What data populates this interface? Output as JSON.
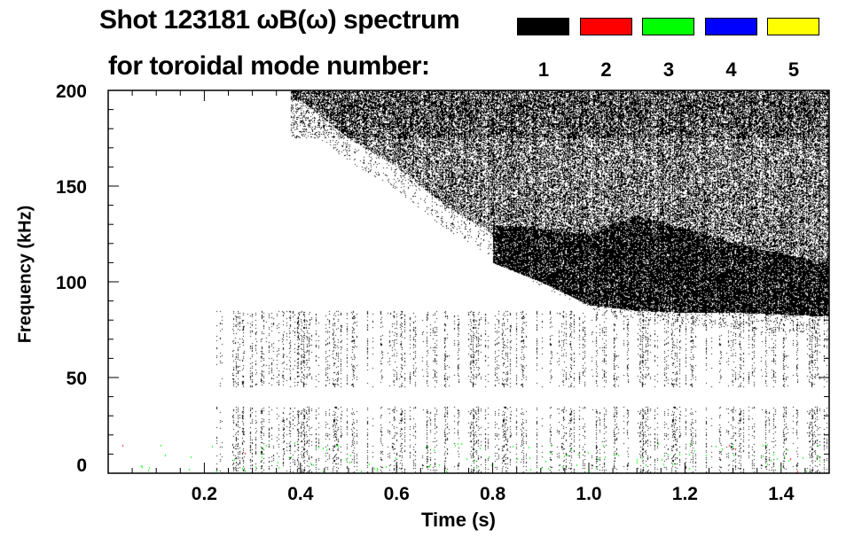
{
  "chart_data": {
    "type": "heatmap",
    "title": "Shot 123181 ωB(ω) spectrum",
    "subtitle": "for toroidal mode number:",
    "xlabel": "Time (s)",
    "ylabel": "Frequency (kHz)",
    "xlim": [
      0.0,
      1.5
    ],
    "ylim": [
      0,
      200
    ],
    "x_ticks": [
      0.2,
      0.4,
      0.6,
      0.8,
      1.0,
      1.2,
      1.4
    ],
    "x_tick_labels": [
      "0.2",
      "0.4",
      "0.6",
      "0.8",
      "1.0",
      "1.2",
      "1.4"
    ],
    "y_ticks": [
      0,
      50,
      100,
      150,
      200
    ],
    "y_tick_labels": [
      "0",
      "50",
      "100",
      "150",
      "200"
    ],
    "legend": [
      {
        "mode": "1",
        "color": "#000000"
      },
      {
        "mode": "2",
        "color": "#ff0000"
      },
      {
        "mode": "3",
        "color": "#00ff00"
      },
      {
        "mode": "4",
        "color": "#0000ff"
      },
      {
        "mode": "5",
        "color": "#ffff00"
      }
    ],
    "broadband_lower_edge": {
      "time": [
        0.4,
        0.5,
        0.6,
        0.7,
        0.8,
        0.9,
        1.0,
        1.1,
        1.2,
        1.3,
        1.4,
        1.5
      ],
      "freq_khz": [
        195,
        175,
        160,
        140,
        125,
        110,
        98,
        92,
        90,
        88,
        86,
        85
      ]
    },
    "dense_band": {
      "time": [
        0.8,
        0.9,
        1.0,
        1.1,
        1.2,
        1.3,
        1.4,
        1.5
      ],
      "low_khz": [
        110,
        100,
        88,
        85,
        84,
        84,
        83,
        82
      ],
      "high_khz": [
        130,
        128,
        125,
        135,
        128,
        120,
        115,
        110
      ]
    },
    "low_freq_activity": {
      "time_start": 0.22,
      "freq_range_khz": [
        0,
        85
      ]
    }
  }
}
